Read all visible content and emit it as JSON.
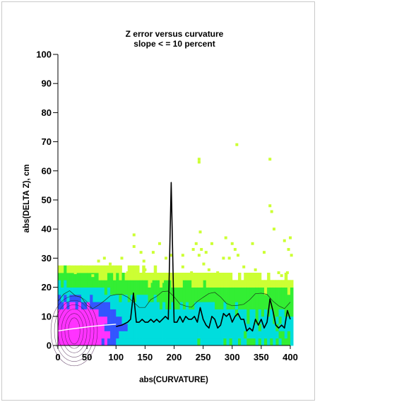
{
  "chart_data": {
    "type": "heatmap",
    "title": "Z error versus curvature",
    "subtitle": "slope < = 10 percent",
    "xlabel": "abs(CURVATURE)",
    "ylabel": "abs(DELTA Z), cm",
    "xlim": [
      0,
      400
    ],
    "ylim": [
      0,
      100
    ],
    "x_ticks": [
      "0",
      "50",
      "100",
      "150",
      "200",
      "250",
      "300",
      "350",
      "400"
    ],
    "y_ticks": [
      "0",
      "10",
      "20",
      "30",
      "40",
      "50",
      "60",
      "70",
      "80",
      "90",
      "100"
    ],
    "grid": false,
    "legend": "none",
    "colors": {
      "density_low": "#ccff33",
      "density_mid_low": "#33ee33",
      "density_mid": "#00dddd",
      "density_mid_high": "#3355ff",
      "density_high": "#ff33ff"
    },
    "series": [
      {
        "kind": "line",
        "color": "#000000",
        "x": [
          100,
          110,
          120,
          125,
          130,
          135,
          140,
          145,
          150,
          155,
          160,
          165,
          170,
          175,
          180,
          185,
          190,
          195,
          200,
          205,
          210,
          215,
          220,
          225,
          230,
          235,
          240,
          245,
          250,
          255,
          260,
          265,
          270,
          275,
          280,
          285,
          290,
          295,
          300,
          305,
          310,
          315,
          320,
          325,
          330,
          335,
          340,
          345,
          350,
          355,
          360,
          365,
          370,
          375,
          380,
          385,
          390,
          395,
          400
        ],
        "y": [
          6.5,
          7,
          8,
          9,
          18,
          8,
          8,
          9,
          8,
          8,
          9,
          8,
          9,
          8,
          9,
          10,
          9,
          56,
          8,
          8,
          10,
          8,
          10,
          9,
          9,
          10,
          8,
          13,
          9,
          7,
          6,
          10,
          9,
          6,
          7,
          11,
          10,
          11,
          8,
          10,
          11,
          9,
          9,
          5,
          6,
          5,
          9,
          7,
          9,
          6,
          8,
          16,
          12,
          7,
          6,
          7,
          6,
          12,
          9
        ]
      },
      {
        "kind": "line",
        "color": "#ffffff",
        "x": [
          0,
          20,
          40,
          60,
          80,
          100
        ],
        "y": [
          5,
          5.6,
          6.1,
          6.6,
          7,
          7.3
        ]
      }
    ],
    "scatter_outliers": [
      [
        131,
        38
      ],
      [
        131,
        34
      ],
      [
        143,
        32
      ],
      [
        148,
        29
      ],
      [
        164,
        32
      ],
      [
        175,
        35
      ],
      [
        186,
        30
      ],
      [
        195,
        31
      ],
      [
        233,
        33
      ],
      [
        238,
        35
      ],
      [
        243,
        31
      ],
      [
        245,
        39
      ],
      [
        247,
        33
      ],
      [
        251,
        28
      ],
      [
        265,
        35
      ],
      [
        285,
        30
      ],
      [
        289,
        37
      ],
      [
        295,
        30
      ],
      [
        300,
        35
      ],
      [
        305,
        33
      ],
      [
        310,
        31
      ],
      [
        335,
        35
      ],
      [
        340,
        26
      ],
      [
        355,
        32
      ],
      [
        365,
        48
      ],
      [
        365,
        64
      ],
      [
        368,
        46
      ],
      [
        372,
        40
      ],
      [
        380,
        25
      ],
      [
        390,
        36
      ],
      [
        397,
        33
      ],
      [
        400,
        37
      ],
      [
        402,
        31
      ],
      [
        243,
        64
      ],
      [
        243,
        63
      ],
      [
        308,
        69
      ],
      [
        230,
        25
      ],
      [
        200,
        23
      ],
      [
        215,
        27
      ],
      [
        260,
        26
      ],
      [
        275,
        25
      ],
      [
        320,
        27
      ],
      [
        345,
        24
      ],
      [
        385,
        24
      ],
      [
        395,
        25
      ],
      [
        150,
        26
      ],
      [
        120,
        25
      ],
      [
        90,
        28
      ],
      [
        60,
        24
      ],
      [
        50,
        26
      ],
      [
        40,
        27
      ],
      [
        30,
        25
      ],
      [
        20,
        27
      ],
      [
        70,
        29
      ],
      [
        80,
        30
      ],
      [
        110,
        30
      ],
      [
        160,
        22
      ],
      [
        180,
        22
      ],
      [
        215,
        31
      ],
      [
        255,
        32
      ],
      [
        295,
        23
      ],
      [
        330,
        22
      ]
    ]
  }
}
